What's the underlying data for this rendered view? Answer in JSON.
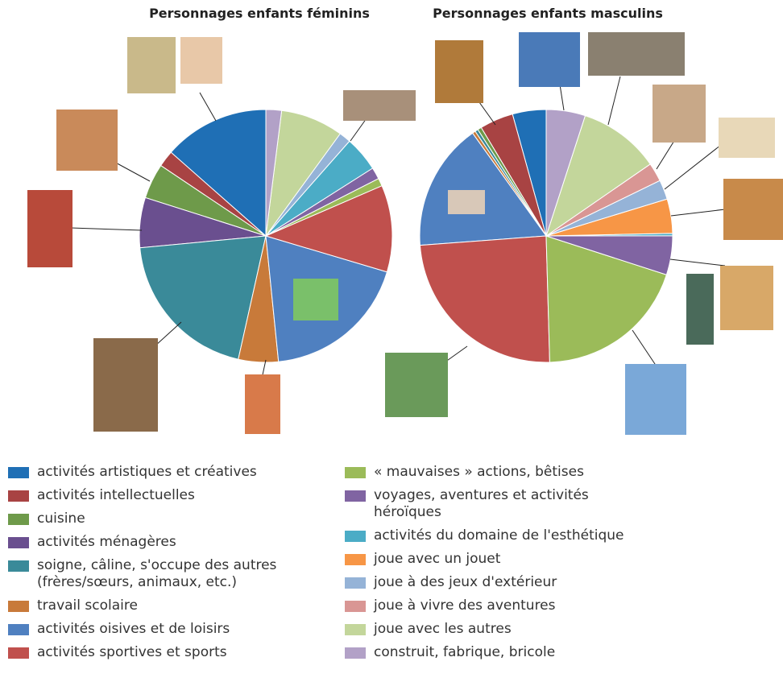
{
  "chart_data": {
    "type": "pie",
    "categories": [
      "activités artistiques et créatives",
      "activités intellectuelles",
      "cuisine",
      "activités ménagères",
      "soigne, câline, s'occupe des autres (frères/sœurs, animaux, etc.)",
      "travail scolaire",
      "activités oisives et de loisirs",
      "activités sportives et sports",
      "« mauvaises » actions, bêtises",
      "voyages, aventures et activités héroïques",
      "activités du domaine de l'esthétique",
      "joue avec un jouet",
      "joue à des jeux d'extérieur",
      "joue à vivre des aventures",
      "joue avec les autres",
      "construit, fabrique, bricole"
    ],
    "colors": [
      "#1f6fb5",
      "#a84343",
      "#6e9a4a",
      "#6a4f8f",
      "#3a8a99",
      "#c87a3a",
      "#4f80c0",
      "#c0504d",
      "#9bbb59",
      "#8064a2",
      "#4bacc6",
      "#f79646",
      "#95b3d7",
      "#d99694",
      "#c3d69b",
      "#b2a1c7"
    ],
    "series": [
      {
        "name": "Personnages enfants féminins",
        "values": [
          13.5,
          2.1,
          4.5,
          6.4,
          20,
          5.1,
          18.8,
          11.1,
          1,
          1.5,
          4.5,
          0,
          1.5,
          0,
          8,
          2
        ]
      },
      {
        "name": "Personnages enfants masculins",
        "values": [
          4.3,
          4.3,
          0.5,
          0,
          0.4,
          0.4,
          16.3,
          24.3,
          19.6,
          5,
          0.3,
          4.4,
          2.5,
          2.4,
          10.4,
          5
        ]
      }
    ]
  }
}
